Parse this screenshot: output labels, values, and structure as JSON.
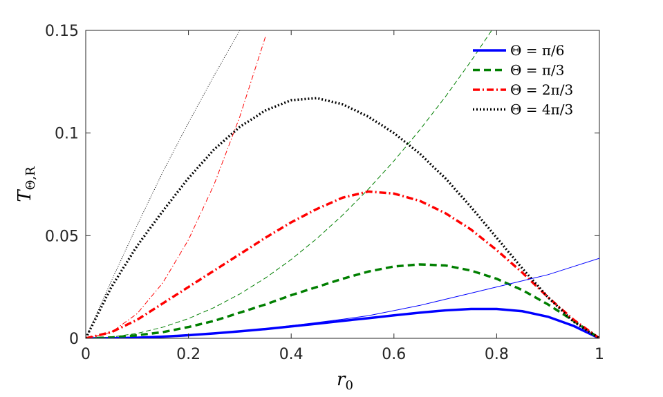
{
  "chart_data": {
    "type": "line",
    "x_label": {
      "main": "r",
      "sub": "0"
    },
    "y_label": {
      "main": "T",
      "sub": "Θ,R"
    },
    "x": [
      0,
      0.05,
      0.1,
      0.15,
      0.2,
      0.25,
      0.3,
      0.35,
      0.4,
      0.45,
      0.5,
      0.55,
      0.6,
      0.65,
      0.7,
      0.75,
      0.8,
      0.85,
      0.9,
      0.95,
      1
    ],
    "xlim": [
      0,
      1
    ],
    "xticks": [
      0,
      0.2,
      0.4,
      0.6,
      0.8,
      1
    ],
    "ylim": [
      0,
      0.15
    ],
    "yticks": [
      0,
      0.05,
      0.1,
      0.15
    ],
    "legend": "upper right",
    "series": [
      {
        "name": "Θ = π/6",
        "color": "#0000ff",
        "dash": "solid",
        "width": "thick",
        "values": [
          0,
          0.0001,
          0.0003,
          0.0008,
          0.0015,
          0.0024,
          0.0034,
          0.0045,
          0.0058,
          0.0071,
          0.0085,
          0.0098,
          0.0112,
          0.0125,
          0.0136,
          0.0143,
          0.0143,
          0.0132,
          0.0105,
          0.006,
          0
        ]
      },
      {
        "name": "Θ = π/3",
        "color": "#007f00",
        "dash": "dashed",
        "width": "thick",
        "values": [
          0,
          0.0004,
          0.0015,
          0.003,
          0.0055,
          0.0085,
          0.0125,
          0.0165,
          0.021,
          0.025,
          0.029,
          0.0325,
          0.035,
          0.036,
          0.0355,
          0.033,
          0.029,
          0.0235,
          0.0165,
          0.0085,
          0
        ]
      },
      {
        "name": "Θ = 2π/3",
        "color": "#ff0000",
        "dash": "dashdot",
        "width": "thick",
        "values": [
          0,
          0.003,
          0.009,
          0.017,
          0.025,
          0.033,
          0.041,
          0.049,
          0.0565,
          0.063,
          0.0685,
          0.0715,
          0.0705,
          0.067,
          0.061,
          0.053,
          0.043,
          0.032,
          0.02,
          0.009,
          0
        ]
      },
      {
        "name": "Θ = 4π/3",
        "color": "#000000",
        "dash": "dotted",
        "width": "thick",
        "values": [
          0,
          0.025,
          0.045,
          0.062,
          0.078,
          0.092,
          0.103,
          0.111,
          0.116,
          0.117,
          0.114,
          0.108,
          0.1,
          0.09,
          0.078,
          0.064,
          0.049,
          0.034,
          0.02,
          0.008,
          0
        ]
      },
      {
        "color": "#0000ff",
        "dash": "solid",
        "width": "thin",
        "values": [
          0,
          0.0001,
          0.0004,
          0.0009,
          0.0016,
          0.0025,
          0.0036,
          0.0048,
          0.0062,
          0.0077,
          0.0093,
          0.011,
          0.0135,
          0.016,
          0.019,
          0.022,
          0.025,
          0.028,
          0.031,
          0.035,
          0.039
        ]
      },
      {
        "color": "#007f00",
        "dash": "dashed",
        "width": "thin",
        "values": [
          0,
          0.0006,
          0.0024,
          0.0054,
          0.0096,
          0.015,
          0.0216,
          0.0294,
          0.0384,
          0.0486,
          0.06,
          0.0726,
          0.0864,
          0.1014,
          0.1176,
          0.135,
          0.1536,
          null,
          null,
          null,
          null
        ]
      },
      {
        "color": "#ff0000",
        "dash": "dashdot",
        "width": "thin",
        "values": [
          0,
          0.003,
          0.012,
          0.027,
          0.048,
          0.075,
          0.108,
          0.147,
          null,
          null,
          null,
          null,
          null,
          null,
          null,
          null,
          null,
          null,
          null,
          null,
          null
        ]
      },
      {
        "color": "#000000",
        "dash": "dotted",
        "width": "thin",
        "values": [
          0,
          0.028,
          0.055,
          0.081,
          0.105,
          0.128,
          0.15,
          null,
          null,
          null,
          null,
          null,
          null,
          null,
          null,
          null,
          null,
          null,
          null,
          null,
          null
        ]
      }
    ]
  }
}
